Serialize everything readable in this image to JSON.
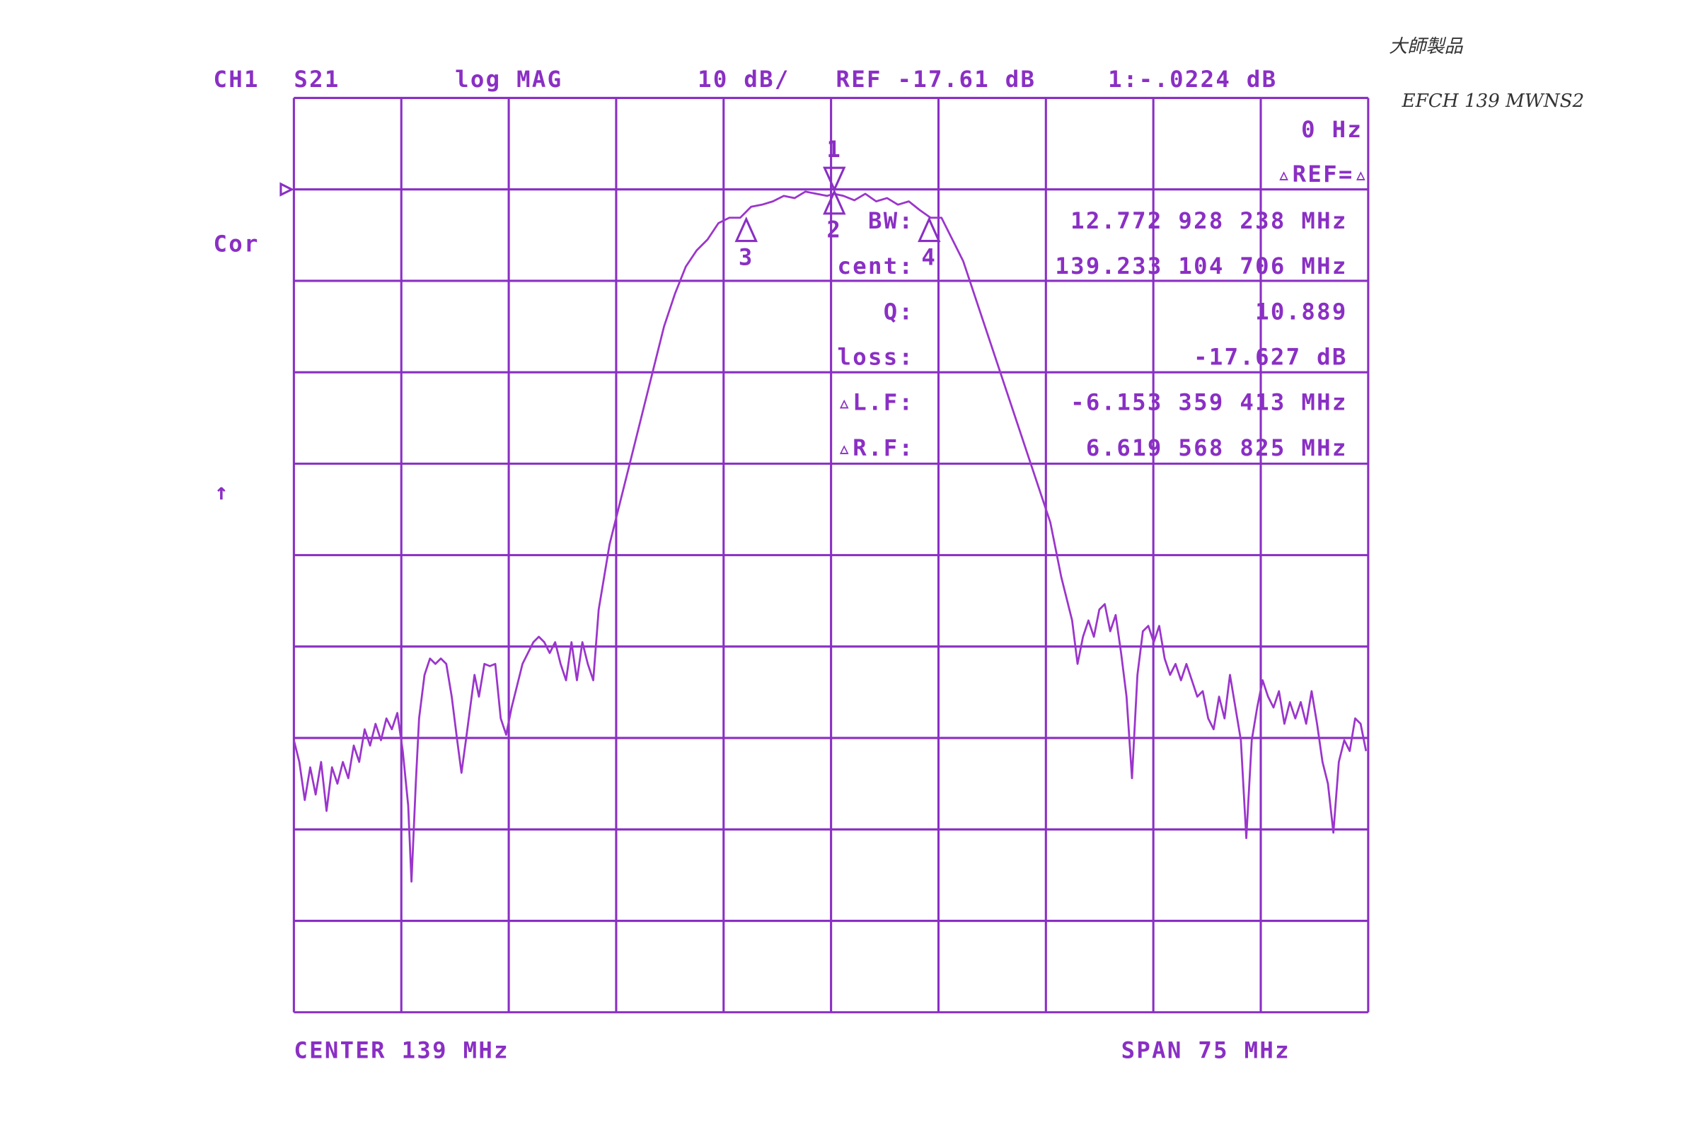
{
  "chart_data": {
    "type": "line",
    "channel": "CH1",
    "parameter": "S21",
    "format": "log MAG",
    "scale": "10 dB/",
    "reference": "REF -17.61 dB",
    "marker_readout": "1:-.0224 dB",
    "side_label": "Cor",
    "arrow": "↑",
    "stimulus": "0 Hz",
    "ref_mode": "▵REF=▵",
    "stats": [
      {
        "label": "BW:",
        "value": "12.772 928 238 MHz"
      },
      {
        "label": "cent:",
        "value": "139.233 104 706 MHz"
      },
      {
        "label": "Q:",
        "value": "10.889"
      },
      {
        "label": "loss:",
        "value": "-17.627 dB"
      },
      {
        "label": "▵L.F:",
        "value": "-6.153 359 413 MHz"
      },
      {
        "label": "▵R.F:",
        "value": "6.619 568 825 MHz"
      }
    ],
    "center": "CENTER 139 MHz",
    "span": "SPAN 75 MHz",
    "ref_level": -17.61,
    "color": "#9b35cc",
    "xlim": [
      101.5,
      176.5
    ],
    "ylim": [
      -107.61,
      -7.61
    ],
    "xticks": [
      101.5,
      109,
      116.5,
      124,
      131.5,
      139,
      146.5,
      154,
      161.5,
      169,
      176.5
    ],
    "yticks": [
      -7.61,
      -17.61,
      -27.61,
      -37.61,
      -47.61,
      -57.61,
      -67.61,
      -77.61,
      -87.61,
      -97.61,
      -107.61
    ],
    "grid": true,
    "markers": [
      {
        "label": "1",
        "x": 139.23,
        "y": -17.63,
        "direction": "down"
      },
      {
        "label": "2",
        "x": 139.23,
        "y": -17.63,
        "direction": "up"
      },
      {
        "label": "3",
        "x": 133.08,
        "y": -20.63,
        "direction": "up"
      },
      {
        "label": "4",
        "x": 145.85,
        "y": -20.63,
        "direction": "up"
      }
    ],
    "x": [
      101.5,
      101.88,
      102.26,
      102.64,
      103.02,
      103.4,
      103.78,
      104.16,
      104.54,
      104.92,
      105.3,
      105.68,
      106.06,
      106.44,
      106.82,
      107.2,
      107.58,
      107.96,
      108.34,
      108.72,
      109.1,
      109.48,
      109.71,
      110.01,
      110.24,
      110.62,
      111.0,
      111.38,
      111.76,
      112.14,
      112.52,
      112.9,
      113.2,
      113.51,
      113.81,
      114.11,
      114.42,
      114.8,
      115.18,
      115.56,
      115.94,
      116.32,
      116.7,
      117.08,
      117.46,
      117.84,
      118.22,
      118.6,
      118.98,
      119.36,
      119.74,
      120.12,
      120.5,
      120.88,
      121.26,
      121.64,
      122.02,
      122.4,
      122.78,
      123.16,
      123.54,
      124.3,
      125.06,
      125.82,
      126.58,
      127.34,
      128.1,
      128.86,
      129.62,
      130.38,
      131.14,
      131.9,
      132.66,
      133.42,
      134.18,
      134.94,
      135.7,
      136.46,
      137.21,
      137.97,
      138.73,
      139.19,
      139.87,
      140.63,
      141.39,
      142.15,
      142.91,
      143.67,
      144.43,
      145.19,
      145.95,
      146.71,
      147.47,
      148.23,
      148.99,
      149.75,
      150.51,
      151.27,
      152.03,
      152.79,
      153.55,
      154.31,
      155.07,
      155.83,
      156.21,
      156.59,
      156.97,
      157.35,
      157.73,
      158.11,
      158.49,
      158.87,
      159.25,
      159.63,
      160.01,
      160.39,
      160.77,
      161.15,
      161.53,
      161.91,
      162.29,
      162.67,
      163.05,
      163.43,
      163.81,
      164.19,
      164.57,
      164.95,
      165.33,
      165.71,
      166.09,
      166.47,
      166.85,
      167.23,
      167.61,
      167.99,
      168.37,
      168.75,
      169.13,
      169.51,
      169.89,
      170.27,
      170.65,
      171.03,
      171.41,
      171.79,
      172.17,
      172.55,
      172.93,
      173.31,
      173.69,
      174.07,
      174.45,
      174.83,
      175.21,
      175.59,
      175.97,
      176.35
    ],
    "values": [
      -77.85,
      -80.23,
      -84.4,
      -80.82,
      -83.8,
      -80.23,
      -85.59,
      -80.82,
      -82.61,
      -80.23,
      -82.01,
      -78.44,
      -80.23,
      -76.66,
      -78.44,
      -76.06,
      -77.85,
      -75.47,
      -76.66,
      -74.87,
      -79.04,
      -84.99,
      -93.32,
      -82.61,
      -75.47,
      -70.71,
      -68.92,
      -69.51,
      -68.92,
      -69.51,
      -73.09,
      -77.85,
      -81.42,
      -77.85,
      -74.28,
      -70.71,
      -73.09,
      -69.51,
      -69.75,
      -69.51,
      -75.47,
      -77.25,
      -74.28,
      -71.9,
      -69.51,
      -68.32,
      -67.13,
      -66.54,
      -67.13,
      -68.32,
      -67.13,
      -69.51,
      -71.3,
      -67.13,
      -71.3,
      -67.13,
      -69.51,
      -71.3,
      -63.56,
      -59.99,
      -56.42,
      -51.66,
      -46.9,
      -42.13,
      -37.37,
      -32.61,
      -29.04,
      -26.06,
      -24.28,
      -23.09,
      -21.3,
      -20.71,
      -20.71,
      -19.51,
      -19.28,
      -18.92,
      -18.32,
      -18.56,
      -17.85,
      -18.09,
      -18.32,
      -18.09,
      -18.32,
      -18.8,
      -18.09,
      -18.92,
      -18.56,
      -19.28,
      -18.92,
      -19.87,
      -20.71,
      -20.71,
      -23.09,
      -25.47,
      -29.04,
      -32.61,
      -36.18,
      -39.75,
      -43.32,
      -46.9,
      -50.47,
      -54.04,
      -59.99,
      -64.75,
      -69.51,
      -66.54,
      -64.75,
      -66.54,
      -63.56,
      -62.97,
      -65.94,
      -64.16,
      -68.32,
      -73.09,
      -82.01,
      -70.71,
      -65.94,
      -65.35,
      -67.13,
      -65.35,
      -68.92,
      -70.71,
      -69.51,
      -71.3,
      -69.51,
      -71.3,
      -73.09,
      -72.49,
      -75.47,
      -76.66,
      -73.09,
      -75.47,
      -70.71,
      -74.28,
      -77.85,
      -88.56,
      -77.85,
      -74.28,
      -71.3,
      -73.09,
      -74.28,
      -72.49,
      -76.06,
      -73.68,
      -75.47,
      -73.68,
      -76.06,
      -72.49,
      -76.06,
      -80.23,
      -82.61,
      -87.97,
      -80.23,
      -77.85,
      -79.04,
      -75.47,
      -76.06,
      -79.04
    ]
  },
  "handwriting": [
    "大師製品",
    "EFCH 139 MWNS2"
  ]
}
